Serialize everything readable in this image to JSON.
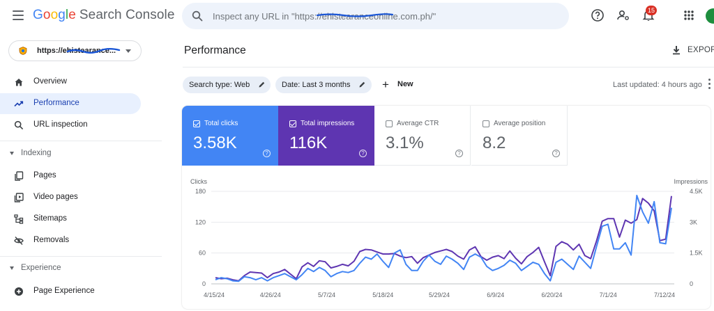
{
  "app": {
    "brand_google": [
      "G",
      "o",
      "o",
      "g",
      "l",
      "e"
    ],
    "brand_rest": "Search Console"
  },
  "search": {
    "placeholder": "Inspect any URL in \"https://ehistearanceonline.com.ph/\""
  },
  "topbar": {
    "notification_count": "15",
    "avatar_initial": ""
  },
  "property": {
    "label": "https://ehistearance..."
  },
  "sidebar": {
    "items": [
      {
        "label": "Overview",
        "icon": "home-icon"
      },
      {
        "label": "Performance",
        "icon": "trending-up-icon"
      },
      {
        "label": "URL inspection",
        "icon": "search-icon"
      }
    ],
    "indexing": {
      "title": "Indexing",
      "items": [
        {
          "label": "Pages",
          "icon": "pages-icon"
        },
        {
          "label": "Video pages",
          "icon": "video-icon"
        },
        {
          "label": "Sitemaps",
          "icon": "sitemap-icon"
        },
        {
          "label": "Removals",
          "icon": "eye-off-icon"
        }
      ]
    },
    "experience": {
      "title": "Experience",
      "items": [
        {
          "label": "Page Experience",
          "icon": "plus-circle-icon"
        }
      ]
    }
  },
  "main": {
    "title": "Performance",
    "export_label": "EXPORT",
    "filters": [
      {
        "label": "Search type: Web"
      },
      {
        "label": "Date: Last 3 months"
      }
    ],
    "new_label": "New",
    "last_updated": "Last updated: 4 hours ago"
  },
  "metrics": [
    {
      "label": "Total clicks",
      "value": "3.58K",
      "selected": true,
      "color": "#4285f4"
    },
    {
      "label": "Total impressions",
      "value": "116K",
      "selected": true,
      "color": "#5e35b1"
    },
    {
      "label": "Average CTR",
      "value": "3.1%",
      "selected": false,
      "color": "#00897b"
    },
    {
      "label": "Average position",
      "value": "8.2",
      "selected": false,
      "color": "#e8710a"
    }
  ],
  "chart_data": {
    "type": "line",
    "left_axis_label": "Clicks",
    "right_axis_label": "Impressions",
    "left_ticks": [
      "180",
      "120",
      "60",
      "0"
    ],
    "right_ticks": [
      "4.5K",
      "3K",
      "1.5K",
      "0"
    ],
    "ylim_left": [
      0,
      180
    ],
    "ylim_right": [
      0,
      4500
    ],
    "x_tick_labels": [
      "4/15/24",
      "4/26/24",
      "5/7/24",
      "5/18/24",
      "5/29/24",
      "6/9/24",
      "6/20/24",
      "7/1/24",
      "7/12/24"
    ],
    "series": [
      {
        "name": "Clicks",
        "color": "#4285f4",
        "values": [
          8,
          12,
          10,
          6,
          5,
          14,
          12,
          8,
          12,
          6,
          12,
          16,
          20,
          14,
          8,
          18,
          30,
          24,
          32,
          26,
          14,
          20,
          24,
          22,
          26,
          40,
          52,
          48,
          58,
          44,
          32,
          60,
          66,
          38,
          26,
          26,
          44,
          56,
          44,
          38,
          54,
          48,
          40,
          28,
          52,
          58,
          52,
          34,
          26,
          30,
          36,
          46,
          40,
          26,
          34,
          42,
          38,
          20,
          6,
          42,
          48,
          38,
          28,
          54,
          42,
          30,
          72,
          112,
          116,
          68,
          68,
          80,
          56,
          172,
          140,
          118,
          160,
          80,
          78,
          148
        ]
      },
      {
        "name": "Impressions",
        "color": "#5e35b1",
        "values": [
          300,
          250,
          275,
          200,
          150,
          400,
          575,
          550,
          525,
          300,
          500,
          575,
          700,
          475,
          250,
          825,
          1025,
          850,
          1125,
          1075,
          775,
          850,
          950,
          875,
          1100,
          1575,
          1675,
          1650,
          1550,
          1450,
          1450,
          1475,
          1350,
          1275,
          1325,
          1000,
          1275,
          1400,
          1525,
          1600,
          1675,
          1575,
          1350,
          1200,
          1650,
          1800,
          1325,
          1150,
          1300,
          1375,
          1225,
          1600,
          1250,
          975,
          1325,
          1525,
          1775,
          1075,
          400,
          1825,
          2050,
          1925,
          1650,
          1925,
          1375,
          1225,
          2075,
          3050,
          3175,
          3175,
          2275,
          3100,
          2950,
          3125,
          4150,
          3925,
          3550,
          2100,
          2175,
          4275
        ]
      }
    ]
  }
}
